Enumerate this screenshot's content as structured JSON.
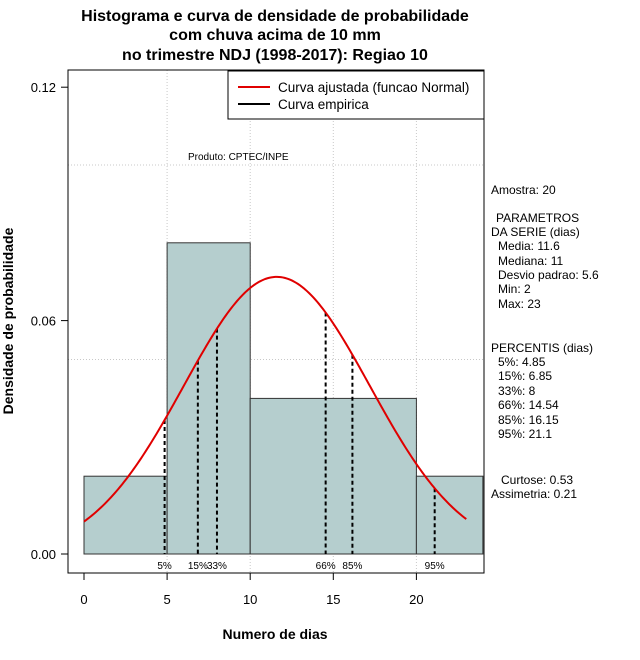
{
  "title_lines": [
    "Histograma e curva de densidade de probabilidade",
    "com chuva acima de 10 mm",
    "no trimestre NDJ (1998-2017): Regiao 10"
  ],
  "xlabel": "Numero de dias",
  "ylabel": "Densidade de probabilidade",
  "product_note": "Produto: CPTEC/INPE",
  "legend": [
    {
      "label": "Curva ajustada (funcao Normal)",
      "color": "#e00000"
    },
    {
      "label": "Curva empirica",
      "color": "#000000"
    }
  ],
  "stats": {
    "amostra": "Amostra: 20",
    "param_title_1": "PARAMETROS",
    "param_title_2": "DA SERIE (dias)",
    "params": [
      "Media: 11.6",
      "Mediana: 11",
      "Desvio padrao: 5.6",
      "Min: 2",
      "Max: 23"
    ],
    "perc_title": "PERCENTIS (dias)",
    "percentiles": [
      "5%: 4.85",
      "15%: 6.85",
      "33%: 8",
      "66%: 14.54",
      "85%: 16.15",
      "95%: 21.1"
    ],
    "curtose": "Curtose: 0.53",
    "assimetria": "Assimetria: 0.21"
  },
  "chart_data": {
    "type": "bar",
    "title": "Histograma e curva de densidade de probabilidade com chuva acima de 10 mm no trimestre NDJ (1998-2017): Regiao 10",
    "xlabel": "Numero de dias",
    "ylabel": "Densidade de probabilidade",
    "xlim": [
      0,
      24
    ],
    "ylim": [
      0,
      0.12
    ],
    "x_ticks": [
      0,
      5,
      10,
      15,
      20
    ],
    "y_ticks": [
      0.0,
      0.06,
      0.12
    ],
    "y_tick_labels": [
      "0.00",
      "0.06",
      "0.12"
    ],
    "grid": true,
    "grid_x": [
      5,
      10,
      15,
      20
    ],
    "grid_y": [
      0.05,
      0.1
    ],
    "legend_position": "top-right",
    "bins": [
      {
        "x0": 0,
        "x1": 5,
        "density": 0.02
      },
      {
        "x0": 5,
        "x1": 10,
        "density": 0.08
      },
      {
        "x0": 10,
        "x1": 20,
        "density": 0.04
      },
      {
        "x0": 20,
        "x1": 24,
        "density": 0.02
      }
    ],
    "bar_color": "#b5cece",
    "normal_fit": {
      "mean": 11.6,
      "sd": 5.6,
      "x_from": 0,
      "x_to": 23,
      "color": "#e00000"
    },
    "percentiles": [
      {
        "label": "5%",
        "value": 4.85
      },
      {
        "label": "15%",
        "value": 6.85
      },
      {
        "label": "33%",
        "value": 8
      },
      {
        "label": "66%",
        "value": 14.54
      },
      {
        "label": "85%",
        "value": 16.15
      },
      {
        "label": "95%",
        "value": 21.1
      }
    ]
  }
}
